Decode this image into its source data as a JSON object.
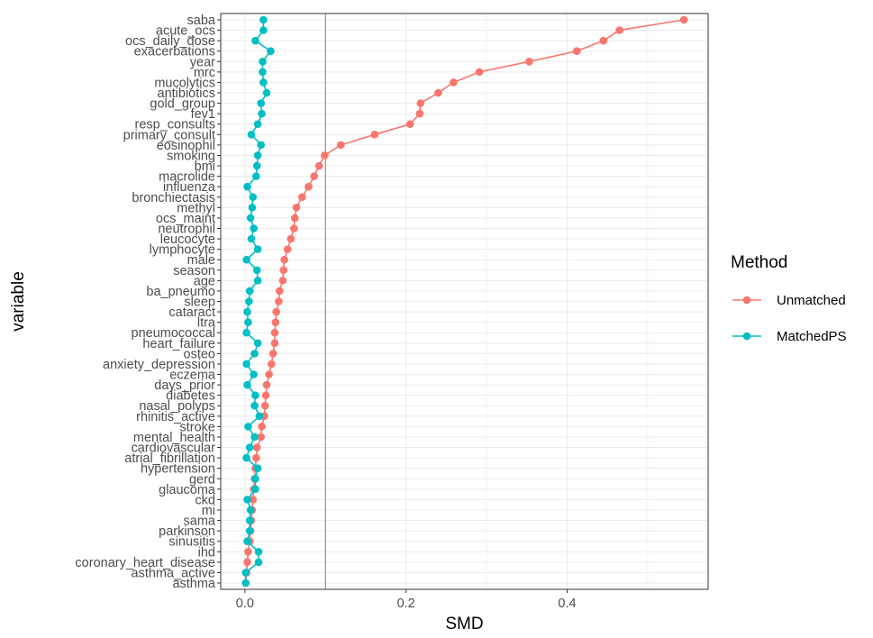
{
  "chart_data": {
    "type": "line",
    "xlabel": "SMD",
    "ylabel": "variable",
    "xlim": [
      -0.03,
      0.575
    ],
    "xticks": [
      0.0,
      0.2,
      0.4
    ],
    "xtick_labels": [
      "0.0",
      "0.2",
      "0.4"
    ],
    "reference_line": 0.1,
    "grid": true,
    "legend_title": "Method",
    "legend_position": "right",
    "categories": [
      "saba",
      "acute_ocs",
      "ocs_daily_dose",
      "exacerbations",
      "year",
      "mrc",
      "mucolytics",
      "antibiotics",
      "gold_group",
      "fev1",
      "resp_consults",
      "primary_consult",
      "eosinophil",
      "smoking",
      "bmi",
      "macrolide",
      "influenza",
      "bronchiectasis",
      "methyl",
      "ocs_maint",
      "neutrophil",
      "leucocyte",
      "lymphocyte",
      "male",
      "season",
      "age",
      "ba_pneumo",
      "sleep",
      "cataract",
      "ltra",
      "pneumococcal",
      "heart_failure",
      "osteo",
      "anxiety_depression",
      "eczema",
      "days_prior",
      "diabetes",
      "nasal_polyps",
      "rhinitis_active",
      "stroke",
      "mental_health",
      "cardiovascular",
      "atrial_fibrillation",
      "hypertension",
      "gerd",
      "glaucoma",
      "ckd",
      "mi",
      "sama",
      "parkinson",
      "sinusitis",
      "ihd",
      "coronary_heart_disease",
      "asthma_active",
      "asthma"
    ],
    "series": [
      {
        "name": "Unmatched",
        "color": "#F8766D",
        "values": [
          0.545,
          0.465,
          0.445,
          0.412,
          0.353,
          0.291,
          0.259,
          0.24,
          0.218,
          0.217,
          0.205,
          0.161,
          0.119,
          0.099,
          0.092,
          0.086,
          0.079,
          0.071,
          0.064,
          0.062,
          0.061,
          0.057,
          0.053,
          0.049,
          0.048,
          0.047,
          0.043,
          0.042,
          0.039,
          0.038,
          0.037,
          0.037,
          0.035,
          0.033,
          0.03,
          0.027,
          0.026,
          0.025,
          0.024,
          0.021,
          0.02,
          0.015,
          0.014,
          0.013,
          0.012,
          0.011,
          0.01,
          0.009,
          0.008,
          0.007,
          0.006,
          0.004,
          0.003,
          0.002,
          0.001
        ]
      },
      {
        "name": "MatchedPS",
        "color": "#00BFC4",
        "values": [
          0.023,
          0.023,
          0.013,
          0.032,
          0.022,
          0.022,
          0.023,
          0.027,
          0.02,
          0.021,
          0.016,
          0.008,
          0.02,
          0.016,
          0.015,
          0.014,
          0.003,
          0.01,
          0.009,
          0.007,
          0.011,
          0.008,
          0.016,
          0.002,
          0.015,
          0.016,
          0.006,
          0.005,
          0.003,
          0.004,
          0.002,
          0.016,
          0.012,
          0.002,
          0.011,
          0.003,
          0.013,
          0.012,
          0.018,
          0.004,
          0.012,
          0.006,
          0.002,
          0.016,
          0.013,
          0.013,
          0.003,
          0.007,
          0.006,
          0.006,
          0.003,
          0.017,
          0.017,
          0.001,
          0.001
        ]
      }
    ]
  }
}
